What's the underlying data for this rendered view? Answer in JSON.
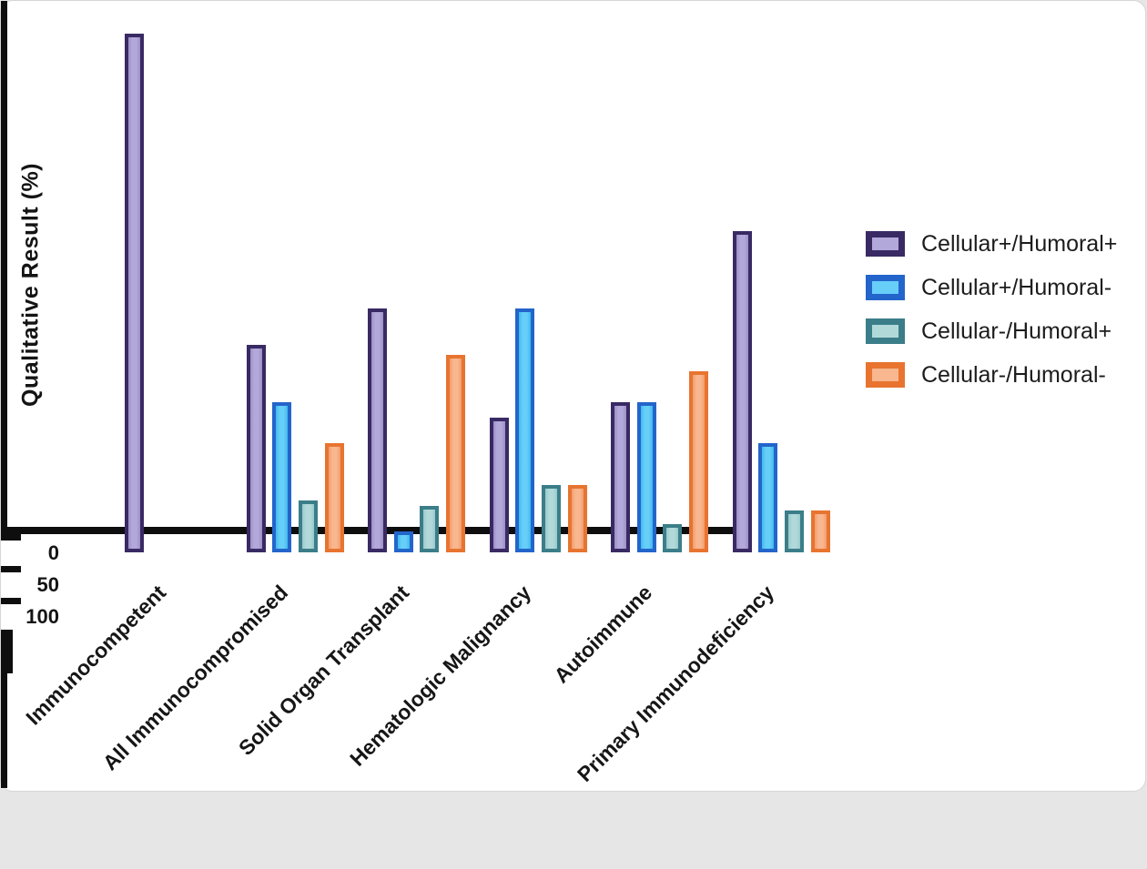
{
  "figure": {
    "page_background": "#e6e6e6",
    "card_background": "#ffffff",
    "axis_color": "#0e0e0e",
    "text_color": "#141414"
  },
  "chart_data": {
    "type": "bar",
    "title": "",
    "ylabel": "Qualitative Result (%)",
    "xlabel": "",
    "ylim": [
      0,
      100
    ],
    "yticks_major": [
      0,
      50,
      100
    ],
    "ytick_minor_step": 10,
    "grid": false,
    "legend_position": "right-of-plot",
    "categories": [
      "Immunocompetent",
      "All Immunocompromised",
      "Solid Organ Transplant",
      "Hematologic Malignancy",
      "Autoimmune",
      "Primary Immunodeficiency"
    ],
    "series": [
      {
        "name": "Cellular+/Humoral+",
        "border_color": "#392a64",
        "fill_edge": "#9c8fc6",
        "fill_center": "#b3a8da",
        "values": [
          100,
          40,
          47,
          26,
          29,
          62
        ]
      },
      {
        "name": "Cellular+/Humoral-",
        "border_color": "#2365cb",
        "fill_edge": "#3fb9ee",
        "fill_center": "#67cef8",
        "values": [
          0,
          29,
          4,
          47,
          29,
          21
        ]
      },
      {
        "name": "Cellular-/Humoral+",
        "border_color": "#3b7e89",
        "fill_edge": "#99c9cc",
        "fill_center": "#b2d9da",
        "values": [
          0,
          10,
          9,
          13,
          5.5,
          8
        ]
      },
      {
        "name": "Cellular-/Humoral-",
        "border_color": "#e87430",
        "fill_edge": "#f29d6d",
        "fill_center": "#f8b78f",
        "values": [
          0,
          21,
          38,
          13,
          35,
          8
        ]
      }
    ]
  }
}
